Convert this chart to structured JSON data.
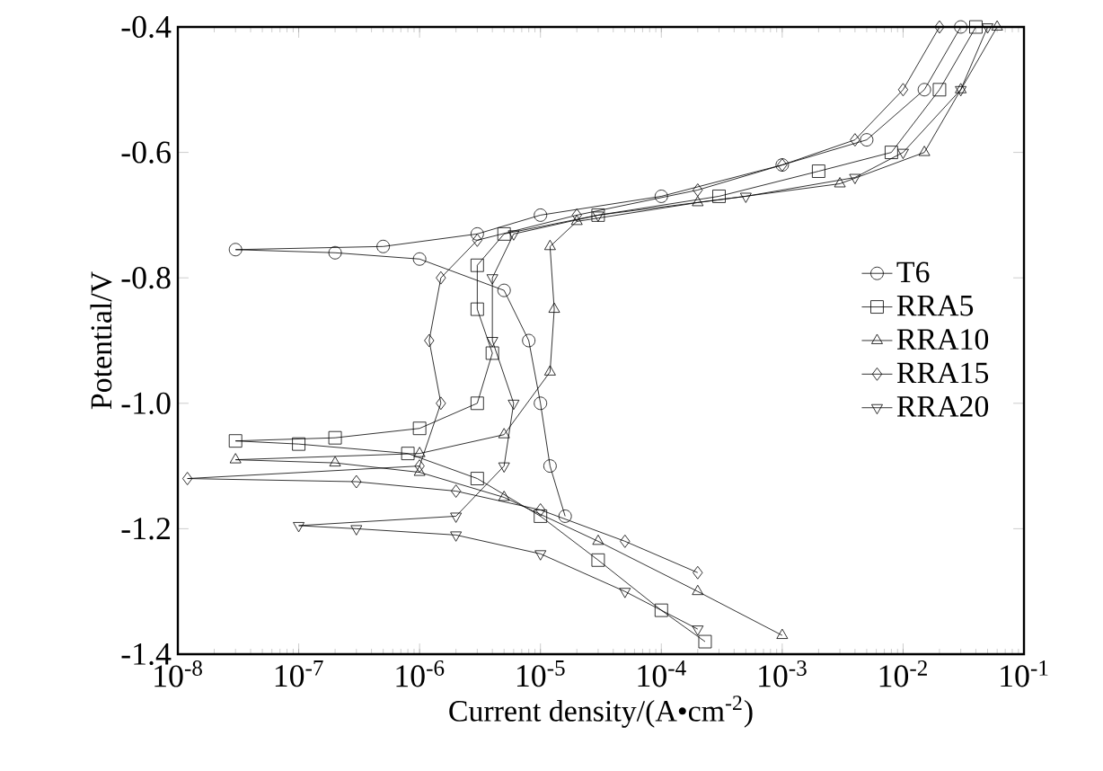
{
  "chart_data": {
    "type": "line",
    "xlabel": "Current density/(A•cm$^{-2}$)",
    "ylabel": "Potential/V",
    "log": "x",
    "legend": "right",
    "line_style": "solid",
    "xlim": [
      1e-08,
      0.1
    ],
    "ylim": [
      -1.4,
      -0.4
    ],
    "xticks": [
      {
        "value": 1e-08,
        "label": "10$^{-8}$"
      },
      {
        "value": 1e-07,
        "label": "10$^{-7}$"
      },
      {
        "value": 1e-06,
        "label": "10$^{-6}$"
      },
      {
        "value": 1e-05,
        "label": "10$^{-5}$"
      },
      {
        "value": 0.0001,
        "label": "10$^{-4}$"
      },
      {
        "value": 0.001,
        "label": "10$^{-3}$"
      },
      {
        "value": 0.01,
        "label": "10$^{-2}$"
      },
      {
        "value": 0.1,
        "label": "10$^{-1}$"
      }
    ],
    "yticks": [
      -1.4,
      -1.2,
      {
        "value": -1.0,
        "label": "-1.0"
      },
      -0.8,
      -0.6,
      -0.4
    ],
    "series": [
      {
        "name": "T6",
        "color": "#000000",
        "marker": "circle",
        "x": [
          1.6e-05,
          1.2e-05,
          1e-05,
          8e-06,
          5e-06,
          1e-06,
          2e-07,
          3e-08,
          5e-07,
          3e-06,
          1e-05,
          0.0001,
          0.001,
          0.005,
          0.015,
          0.03
        ],
        "values": [
          -1.18,
          -1.1,
          -1.0,
          -0.9,
          -0.82,
          -0.77,
          -0.76,
          -0.755,
          -0.75,
          -0.73,
          -0.7,
          -0.67,
          -0.62,
          -0.58,
          -0.5,
          -0.4
        ]
      },
      {
        "name": "RRA5",
        "color": "#000000",
        "marker": "square",
        "x": [
          0.00023,
          0.0001,
          3e-05,
          1e-05,
          3e-06,
          8e-07,
          1e-07,
          3e-08,
          2e-07,
          1e-06,
          3e-06,
          4e-06,
          3e-06,
          3e-06,
          5e-06,
          3e-05,
          0.0003,
          0.002,
          0.008,
          0.02,
          0.04
        ],
        "values": [
          -1.38,
          -1.33,
          -1.25,
          -1.18,
          -1.12,
          -1.08,
          -1.065,
          -1.06,
          -1.055,
          -1.04,
          -1.0,
          -0.92,
          -0.85,
          -0.78,
          -0.73,
          -0.7,
          -0.67,
          -0.63,
          -0.6,
          -0.5,
          -0.4
        ]
      },
      {
        "name": "RRA10",
        "color": "#000000",
        "marker": "triangle",
        "x": [
          0.001,
          0.0002,
          3e-05,
          5e-06,
          1e-06,
          2e-07,
          3e-08,
          1e-06,
          5e-06,
          1.2e-05,
          1.3e-05,
          1.2e-05,
          2e-05,
          0.0002,
          0.003,
          0.015,
          0.03,
          0.06
        ],
        "values": [
          -1.37,
          -1.3,
          -1.22,
          -1.15,
          -1.11,
          -1.095,
          -1.09,
          -1.08,
          -1.05,
          -0.95,
          -0.85,
          -0.75,
          -0.71,
          -0.68,
          -0.65,
          -0.6,
          -0.5,
          -0.4
        ]
      },
      {
        "name": "RRA15",
        "color": "#000000",
        "marker": "diamond",
        "x": [
          0.0002,
          5e-05,
          1e-05,
          2e-06,
          3e-07,
          1.2e-08,
          1e-06,
          1.5e-06,
          1.2e-06,
          1.5e-06,
          3e-06,
          2e-05,
          0.0002,
          0.001,
          0.004,
          0.01,
          0.02
        ],
        "values": [
          -1.27,
          -1.22,
          -1.17,
          -1.14,
          -1.125,
          -1.12,
          -1.1,
          -1.0,
          -0.9,
          -0.8,
          -0.74,
          -0.7,
          -0.66,
          -0.62,
          -0.58,
          -0.5,
          -0.4
        ]
      },
      {
        "name": "RRA20",
        "color": "#000000",
        "marker": "triangle down",
        "x": [
          0.0002,
          5e-05,
          1e-05,
          2e-06,
          3e-07,
          1e-07,
          2e-06,
          5e-06,
          6e-06,
          4e-06,
          4e-06,
          6e-06,
          3e-05,
          0.0005,
          0.004,
          0.01,
          0.03,
          0.05
        ],
        "values": [
          -1.36,
          -1.3,
          -1.24,
          -1.21,
          -1.2,
          -1.195,
          -1.18,
          -1.1,
          -1.0,
          -0.9,
          -0.8,
          -0.73,
          -0.7,
          -0.67,
          -0.64,
          -0.6,
          -0.5,
          -0.4
        ]
      }
    ]
  }
}
